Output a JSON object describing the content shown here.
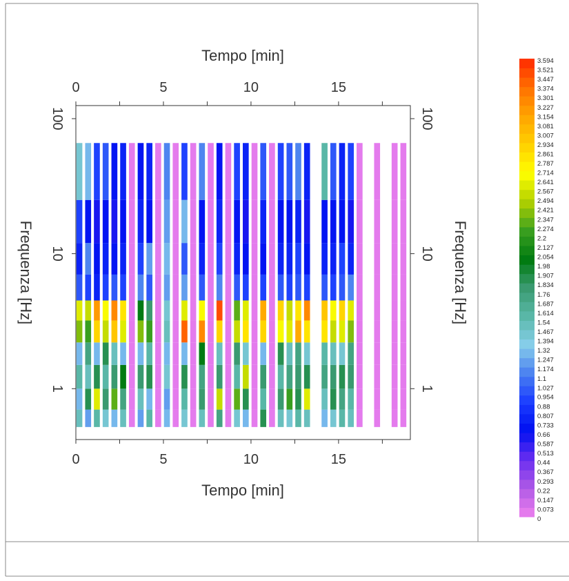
{
  "chart_data": {
    "type": "heatmap",
    "x_label": "Tempo [min]",
    "y_label": "Frequenza [Hz]",
    "xlim": [
      0,
      19.1
    ],
    "xticks": [
      0,
      5,
      10,
      15
    ],
    "xminor_ticks": [
      2.5,
      7.5,
      12.5,
      17.5
    ],
    "ylim": [
      0.42,
      125
    ],
    "yticks": [
      1,
      10,
      100
    ],
    "log_y": true,
    "x": [
      0.2,
      0.7,
      1.2,
      1.7,
      2.2,
      2.7,
      3.2,
      3.7,
      4.2,
      4.7,
      5.2,
      5.7,
      6.2,
      6.7,
      7.2,
      7.7,
      8.2,
      8.7,
      9.2,
      9.7,
      10.2,
      10.7,
      11.2,
      11.7,
      12.2,
      12.7,
      13.2,
      13.7,
      14.2,
      14.7,
      15.2,
      15.7,
      16.2,
      16.7,
      17.2,
      17.7,
      18.2,
      18.7
    ],
    "freq_bins": [
      0.52,
      0.7,
      1,
      1.5,
      2.2,
      3.2,
      4.5,
      7,
      12,
      25,
      66
    ],
    "values": [
      [
        1.5,
        1.3,
        1.6,
        1.3,
        2.4,
        2.6,
        1.0,
        0.8,
        0.9,
        1.4
      ],
      [
        1.2,
        1.9,
        1.5,
        1.7,
        2.2,
        2.5,
        0.9,
        1.1,
        0.7,
        1.3
      ],
      [
        1.6,
        2.6,
        1.9,
        1.3,
        2.9,
        3.2,
        0.8,
        0.7,
        0.6,
        0.9
      ],
      [
        1.4,
        1.8,
        1.6,
        1.9,
        2.5,
        2.7,
        0.9,
        0.8,
        0.7,
        1.0
      ],
      [
        1.3,
        2.3,
        1.8,
        1.5,
        3.0,
        3.3,
        1.0,
        0.7,
        0.6,
        0.7
      ],
      [
        1.5,
        1.7,
        2.0,
        1.3,
        2.6,
        2.8,
        0.9,
        0.8,
        0.7,
        0.8
      ],
      [
        0,
        0,
        0,
        0,
        0,
        0,
        0,
        0,
        0,
        0
      ],
      [
        1.2,
        1.5,
        1.8,
        1.3,
        2.4,
        2.0,
        1.1,
        0.9,
        0.8,
        0.7
      ],
      [
        1.6,
        1.3,
        1.9,
        1.6,
        2.2,
        1.8,
        1.0,
        1.2,
        0.7,
        0.8
      ],
      [
        0,
        0,
        0,
        0,
        0,
        0,
        0,
        0,
        0,
        0
      ],
      [
        1.3,
        1.2,
        1.4,
        1.3,
        1.5,
        1.4,
        1.2,
        1.3,
        1.2,
        1.1
      ],
      [
        0,
        0,
        0,
        0,
        0,
        0,
        0,
        0,
        0,
        0
      ],
      [
        1.4,
        1.6,
        1.9,
        1.3,
        3.4,
        2.6,
        1.2,
        1.0,
        1.3,
        0.9
      ],
      [
        0,
        0,
        0,
        0,
        0,
        0,
        0,
        0,
        0,
        0
      ],
      [
        1.5,
        1.8,
        1.7,
        2.0,
        3.3,
        2.7,
        1.0,
        0.8,
        0.7,
        1.1
      ],
      [
        0,
        0,
        0,
        0,
        0,
        0,
        0,
        0,
        0,
        0
      ],
      [
        1.7,
        2.5,
        1.8,
        1.5,
        2.9,
        3.5,
        1.1,
        0.9,
        0.8,
        0.7
      ],
      [
        0,
        0,
        0,
        0,
        0,
        0,
        0,
        0,
        0,
        0
      ],
      [
        1.4,
        2.3,
        1.6,
        1.8,
        2.5,
        2.3,
        1.0,
        0.8,
        0.7,
        0.9
      ],
      [
        1.3,
        1.9,
        2.5,
        1.4,
        2.8,
        2.6,
        0.9,
        0.7,
        0.6,
        0.8
      ],
      [
        0,
        0,
        0,
        0,
        0,
        0,
        0,
        0,
        0,
        0
      ],
      [
        1.9,
        1.6,
        1.8,
        1.3,
        2.9,
        3.1,
        0.9,
        0.7,
        0.8,
        1.0
      ],
      [
        0,
        0,
        0,
        0,
        0,
        0,
        0,
        0,
        0,
        0
      ],
      [
        1.5,
        1.8,
        1.6,
        1.9,
        2.7,
        2.9,
        1.0,
        0.8,
        0.7,
        0.9
      ],
      [
        1.4,
        2.2,
        1.7,
        1.5,
        2.6,
        2.5,
        0.9,
        0.8,
        0.7,
        1.0
      ],
      [
        1.6,
        1.9,
        1.8,
        1.7,
        3.1,
        2.8,
        1.0,
        0.9,
        0.8,
        1.1
      ],
      [
        1.5,
        2.6,
        1.9,
        1.4,
        2.8,
        3.3,
        0.9,
        0.7,
        0.6,
        0.8
      ],
      [
        null,
        null,
        null,
        null,
        null,
        null,
        null,
        null,
        null,
        null
      ],
      [
        1.3,
        1.5,
        1.7,
        1.6,
        2.8,
        3.0,
        1.0,
        0.8,
        0.7,
        1.6
      ],
      [
        1.4,
        1.9,
        1.8,
        1.5,
        2.5,
        2.7,
        0.9,
        0.8,
        0.7,
        1.0
      ],
      [
        1.6,
        1.7,
        1.9,
        1.4,
        2.6,
        2.9,
        1.0,
        0.9,
        0.7,
        0.8
      ],
      [
        1.5,
        1.6,
        1.8,
        1.7,
        2.4,
        2.6,
        1.1,
        0.8,
        0.6,
        0.9
      ],
      [
        0,
        0,
        0,
        0,
        0,
        0,
        0,
        0,
        0,
        0
      ],
      [
        null,
        null,
        null,
        null,
        null,
        null,
        null,
        null,
        null,
        null
      ],
      [
        0,
        0,
        0,
        0,
        0,
        0,
        0,
        0,
        0,
        0
      ],
      [
        null,
        null,
        null,
        null,
        null,
        null,
        null,
        null,
        null,
        null
      ],
      [
        0,
        0,
        0,
        0,
        0,
        0,
        0,
        0,
        0,
        0
      ],
      [
        0,
        0,
        0,
        0,
        0,
        0,
        0,
        0,
        0,
        0
      ]
    ],
    "colorbar_levels": [
      0,
      0.073,
      0.147,
      0.22,
      0.293,
      0.367,
      0.44,
      0.513,
      0.587,
      0.66,
      0.733,
      0.807,
      0.88,
      0.954,
      1.027,
      1.1,
      1.174,
      1.247,
      1.32,
      1.394,
      1.467,
      1.54,
      1.614,
      1.687,
      1.76,
      1.834,
      1.907,
      1.98,
      2.054,
      2.127,
      2.2,
      2.274,
      2.347,
      2.421,
      2.494,
      2.567,
      2.641,
      2.714,
      2.787,
      2.861,
      2.934,
      3.007,
      3.081,
      3.154,
      3.227,
      3.301,
      3.374,
      3.447,
      3.521,
      3.594
    ],
    "colormap": [
      "#ee82ee",
      "#b05ae6",
      "#6a2ef0",
      "#0010f0",
      "#1a3cff",
      "#4a80f0",
      "#87ceeb",
      "#5ab8a8",
      "#3a9a70",
      "#007a10",
      "#3aa020",
      "#b0d000",
      "#ffff00",
      "#ffd000",
      "#ffa500",
      "#ff7000",
      "#ff2a00"
    ]
  }
}
